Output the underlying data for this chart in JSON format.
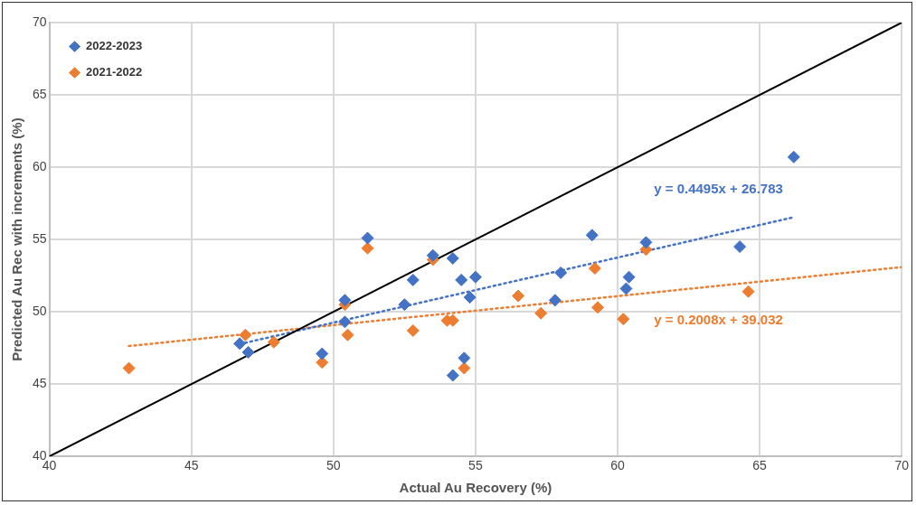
{
  "chart_data": {
    "type": "scatter",
    "xlabel": "Actual Au Recovery (%)",
    "ylabel": "Predicted Au Rec with increments (%)",
    "xlim": [
      40,
      70
    ],
    "xticks": [
      40,
      45,
      50,
      55,
      60,
      65,
      70
    ],
    "ylim": [
      40,
      70
    ],
    "yticks": [
      40,
      45,
      50,
      55,
      60,
      65,
      70
    ],
    "grid": true,
    "legend": "top left",
    "series": [
      {
        "name": "2022-2023",
        "color": "#4472c4",
        "marker": "diamond",
        "x": [
          46.7,
          47.0,
          49.6,
          50.4,
          50.4,
          51.2,
          52.5,
          52.8,
          53.5,
          54.2,
          54.2,
          54.5,
          54.6,
          54.8,
          55.0,
          57.3,
          57.8,
          58.0,
          59.1,
          60.3,
          60.4,
          61.0,
          64.3,
          66.2
        ],
        "values": [
          47.8,
          47.2,
          47.1,
          50.8,
          49.3,
          55.1,
          50.5,
          52.2,
          53.9,
          53.7,
          45.6,
          52.2,
          46.8,
          51.0,
          52.4,
          null,
          50.8,
          52.7,
          55.3,
          51.6,
          52.4,
          54.8,
          54.5,
          60.7
        ]
      },
      {
        "name": "2021-2022",
        "color": "#ed7d31",
        "marker": "diamond",
        "x": [
          42.8,
          46.9,
          47.9,
          49.6,
          50.4,
          50.5,
          51.2,
          52.8,
          53.5,
          54.0,
          54.2,
          54.6,
          56.5,
          57.3,
          59.2,
          59.3,
          60.2,
          61.0,
          64.6
        ],
        "values": [
          46.1,
          48.4,
          47.9,
          46.5,
          50.5,
          48.4,
          54.4,
          48.7,
          53.6,
          49.4,
          49.4,
          46.1,
          51.1,
          49.9,
          53.0,
          50.3,
          49.5,
          54.3,
          51.4
        ]
      },
      {
        "type": "line",
        "color": "#000000",
        "line_style": "solid",
        "marker": "none",
        "x": [
          40,
          70
        ],
        "values": [
          40,
          70
        ]
      },
      {
        "type": "line",
        "color": "#4472c4",
        "line_style": "dotted",
        "marker": "none",
        "x": [
          46.7,
          66.2
        ],
        "values": [
          47.77,
          56.54
        ]
      },
      {
        "type": "line",
        "color": "#ed7d31",
        "line_style": "dotted",
        "marker": "none",
        "x": [
          42.8,
          70
        ],
        "values": [
          47.63,
          53.09
        ]
      }
    ],
    "annotations": [
      "y = 0.4495x + 26.783",
      "y = 0.2008x + 39.032"
    ]
  }
}
